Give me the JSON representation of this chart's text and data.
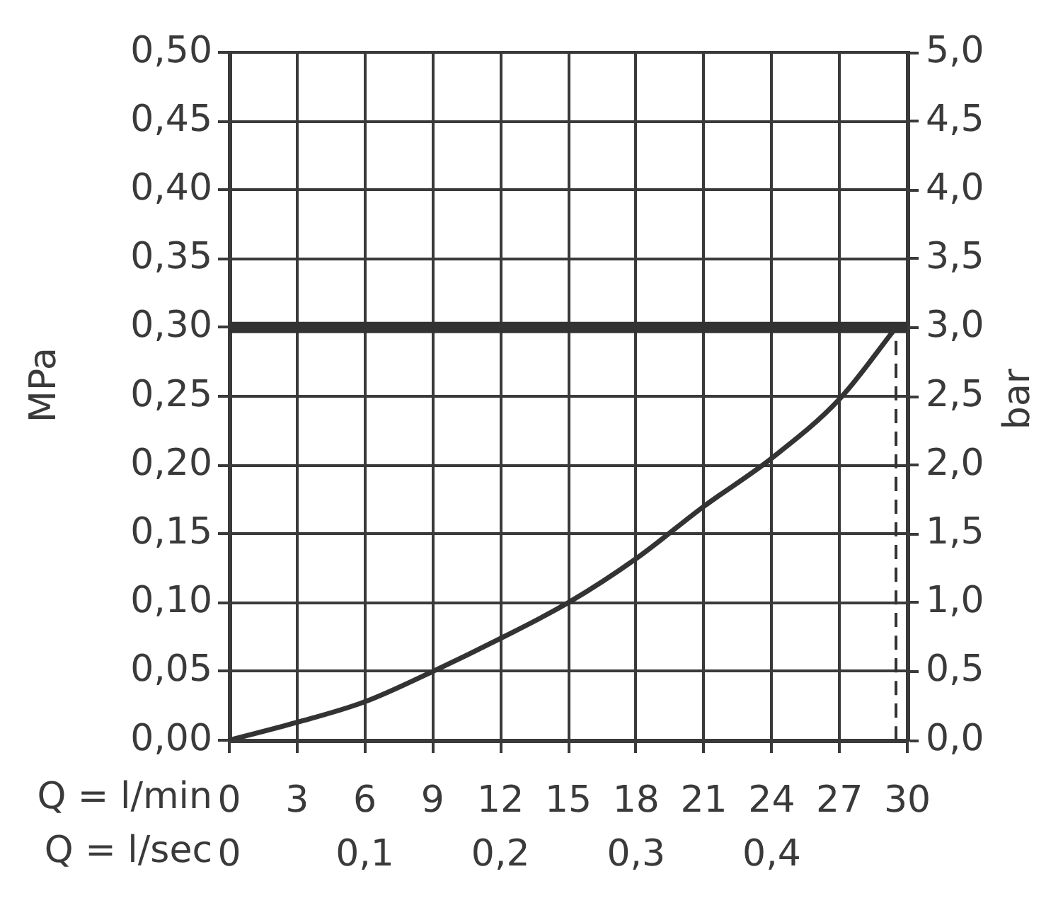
{
  "chart_data": {
    "type": "line",
    "xlabel": "Q = l/min",
    "x2label": "Q = l/sec",
    "ylabel": "MPa",
    "y2label": "bar",
    "xlim": [
      0,
      30
    ],
    "xticks": [
      0,
      3,
      6,
      9,
      12,
      15,
      18,
      21,
      24,
      27,
      30
    ],
    "x2lim": [
      0,
      0.5
    ],
    "x2ticks": [
      0,
      {
        "value": 0.1,
        "label": "0,1"
      },
      {
        "value": 0.2,
        "label": "0,2"
      },
      {
        "value": 0.3,
        "label": "0,3"
      },
      {
        "value": 0.4,
        "label": "0,4"
      }
    ],
    "ylim": [
      0,
      0.5
    ],
    "yticks": [
      {
        "value": 0,
        "label": "0,00"
      },
      {
        "value": 0.05,
        "label": "0,05"
      },
      {
        "value": 0.1,
        "label": "0,10"
      },
      {
        "value": 0.15,
        "label": "0,15"
      },
      {
        "value": 0.2,
        "label": "0,20"
      },
      {
        "value": 0.25,
        "label": "0,25"
      },
      {
        "value": 0.3,
        "label": "0,30"
      },
      {
        "value": 0.35,
        "label": "0,35"
      },
      {
        "value": 0.4,
        "label": "0,40"
      },
      {
        "value": 0.45,
        "label": "0,45"
      },
      {
        "value": 0.5,
        "label": "0,50"
      }
    ],
    "y2lim": [
      0,
      5
    ],
    "y2ticks": [
      {
        "value": 0,
        "label": "0,0"
      },
      {
        "value": 0.5,
        "label": "0,5"
      },
      {
        "value": 1,
        "label": "1,0"
      },
      {
        "value": 1.5,
        "label": "1,5"
      },
      {
        "value": 2,
        "label": "2,0"
      },
      {
        "value": 2.5,
        "label": "2,5"
      },
      {
        "value": 3,
        "label": "3,0"
      },
      {
        "value": 3.5,
        "label": "3,5"
      },
      {
        "value": 4,
        "label": "4,0"
      },
      {
        "value": 4.5,
        "label": "4,5"
      },
      {
        "value": 5,
        "label": "5,0"
      }
    ],
    "grid": true,
    "series": [
      {
        "color": "#333333",
        "x": [
          0,
          3,
          6,
          9,
          12,
          15,
          18,
          21,
          24,
          27,
          29.5
        ],
        "values": [
          0,
          0.013,
          0.028,
          0.05,
          0.074,
          0.1,
          0.132,
          0.17,
          0.205,
          0.248,
          0.3
        ]
      },
      {
        "color": "#333333",
        "x": [
          29.5,
          29.5
        ],
        "values": [
          0,
          0.3
        ],
        "line_style": "dashed"
      }
    ],
    "ref_lines": [
      {
        "axis": "y",
        "value": 0.3,
        "color": "#333333"
      }
    ]
  }
}
